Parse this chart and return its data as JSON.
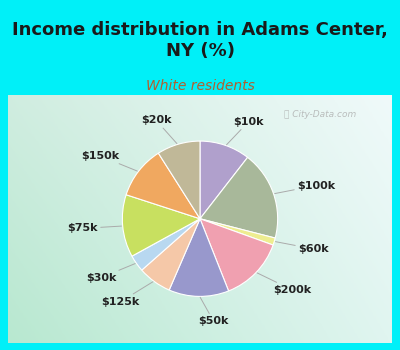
{
  "title": "Income distribution in Adams Center,\nNY (%)",
  "subtitle": "White residents",
  "labels": [
    "$10k",
    "$100k",
    "$60k",
    "$200k",
    "$50k",
    "$125k",
    "$30k",
    "$75k",
    "$150k",
    "$20k"
  ],
  "sizes": [
    10.5,
    18.5,
    1.5,
    13.5,
    12.5,
    7.0,
    3.5,
    13.0,
    11.0,
    9.0
  ],
  "colors": [
    "#b0a0cc",
    "#a8b89a",
    "#eeed90",
    "#f0a0b0",
    "#9898cc",
    "#f5c8a8",
    "#b8d8f0",
    "#c8e060",
    "#f0a860",
    "#c0b898"
  ],
  "background_cyan": "#00f0f8",
  "title_color": "#1a1a1a",
  "subtitle_color": "#b06030",
  "label_fontsize": 8,
  "title_fontsize": 13,
  "subtitle_fontsize": 10
}
